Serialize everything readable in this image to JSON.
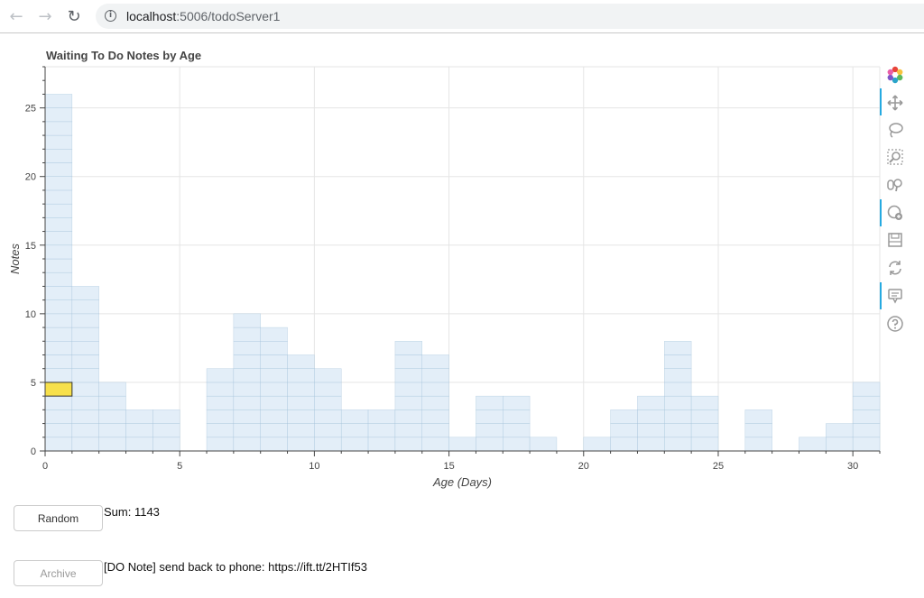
{
  "browser": {
    "url_host": "localhost",
    "url_path": ":5006/todoServer1"
  },
  "chart_data": {
    "type": "bar",
    "title": "Waiting To Do Notes by Age",
    "xlabel": "Age (Days)",
    "ylabel": "Notes",
    "xlim": [
      0,
      31
    ],
    "ylim": [
      0,
      28
    ],
    "xticks": [
      0,
      5,
      10,
      15,
      20,
      25,
      30
    ],
    "yticks": [
      0,
      5,
      10,
      15,
      20,
      25
    ],
    "bin_width": 1,
    "x": [
      0,
      1,
      2,
      3,
      4,
      5,
      6,
      7,
      8,
      9,
      10,
      11,
      12,
      13,
      14,
      15,
      16,
      17,
      18,
      19,
      20,
      21,
      22,
      23,
      24,
      25,
      26,
      27,
      28,
      29,
      30
    ],
    "values": [
      26,
      12,
      5,
      3,
      3,
      0,
      6,
      10,
      9,
      7,
      6,
      3,
      3,
      8,
      7,
      1,
      4,
      4,
      1,
      0,
      1,
      3,
      4,
      8,
      4,
      0,
      3,
      0,
      1,
      2,
      5
    ],
    "highlight": {
      "x": 0,
      "y0": 4,
      "y1": 5
    },
    "grid": true,
    "bar_color": "#e3eef8",
    "bar_line_color": "#9bbcd6",
    "highlight_color": "#f7e04b"
  },
  "toolbar": {
    "items": [
      "bokeh-logo",
      "pan",
      "lasso-select",
      "box-zoom",
      "wheel-zoom",
      "tap",
      "save",
      "reset",
      "hover",
      "help"
    ]
  },
  "widgets": {
    "random_label": "Random",
    "sum_text": "Sum: 1143",
    "archive_label": "Archive",
    "note_text": "[DO Note] send back to phone: https://ift.tt/2HTIf53"
  }
}
